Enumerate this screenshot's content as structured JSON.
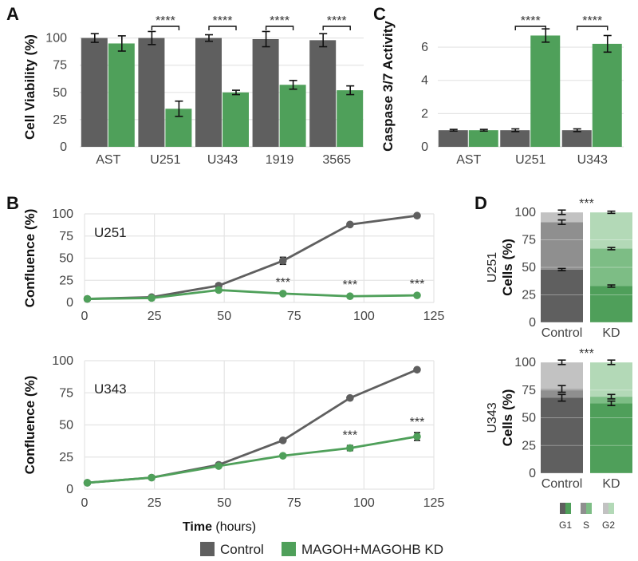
{
  "panel_labels": {
    "a": "A",
    "b": "B",
    "c": "C",
    "d": "D"
  },
  "colors": {
    "control": "#5f5f5f",
    "kd": "#4fa05a",
    "control_g1": "#5f5f5f",
    "control_s": "#8f8f8f",
    "control_g2": "#c2c2c2",
    "kd_g1": "#4f9f5a",
    "kd_s": "#7dbd85",
    "kd_g2": "#b3d9b7",
    "grid": "#e4e4e4"
  },
  "legend": {
    "control": "Control",
    "kd": "MAGOH+MAGOHB KD"
  },
  "chart_data": [
    {
      "id": "A",
      "type": "bar",
      "title": "",
      "ylabel": "Cell Viability (%)",
      "ylim": [
        0,
        110
      ],
      "yticks": [
        0,
        25,
        50,
        75,
        100
      ],
      "categories": [
        "AST",
        "U251",
        "U343",
        "1919",
        "3565"
      ],
      "series": [
        {
          "name": "Control",
          "values": [
            100,
            100,
            100,
            99,
            98
          ],
          "errors": [
            4,
            6,
            3,
            7,
            6
          ]
        },
        {
          "name": "MAGOH+MAGOHB KD",
          "values": [
            95,
            35,
            50,
            57,
            52
          ],
          "errors": [
            7,
            7,
            2,
            4,
            4
          ]
        }
      ],
      "significance": [
        {
          "category": "U251",
          "label": "****"
        },
        {
          "category": "U343",
          "label": "****"
        },
        {
          "category": "1919",
          "label": "****"
        },
        {
          "category": "3565",
          "label": "****"
        }
      ]
    },
    {
      "id": "C",
      "type": "bar",
      "ylabel": "Caspase 3/7 Activity",
      "ylim": [
        0,
        7.3
      ],
      "yticks": [
        0,
        2,
        4,
        6
      ],
      "categories": [
        "AST",
        "U251",
        "U343"
      ],
      "series": [
        {
          "name": "Control",
          "values": [
            1.0,
            1.0,
            1.0
          ],
          "errors": [
            0.05,
            0.08,
            0.08
          ]
        },
        {
          "name": "MAGOH+MAGOHB KD",
          "values": [
            1.0,
            6.7,
            6.2
          ],
          "errors": [
            0.05,
            0.4,
            0.5
          ]
        }
      ],
      "significance": [
        {
          "category": "U251",
          "label": "****"
        },
        {
          "category": "U343",
          "label": "****"
        }
      ]
    },
    {
      "id": "B1",
      "type": "line",
      "label": "U251",
      "ylabel": "Confluence (%)",
      "xlim": [
        0,
        125
      ],
      "ylim": [
        0,
        100
      ],
      "xticks": [
        0,
        25,
        50,
        75,
        100,
        125
      ],
      "yticks": [
        0,
        25,
        50,
        75,
        100
      ],
      "series": [
        {
          "name": "Control",
          "x": [
            1,
            24,
            48,
            71,
            95,
            119
          ],
          "y": [
            4,
            6,
            19,
            47,
            88,
            98
          ],
          "errors": [
            0,
            0,
            2,
            4,
            1,
            0
          ]
        },
        {
          "name": "MAGOH+MAGOHB KD",
          "x": [
            1,
            24,
            48,
            71,
            95,
            119
          ],
          "y": [
            4,
            5,
            14,
            10,
            7,
            8
          ],
          "errors": [
            0,
            0,
            1,
            1,
            1,
            1
          ]
        }
      ],
      "annotations": [
        {
          "x": 71,
          "label": "***"
        },
        {
          "x": 95,
          "label": "***"
        },
        {
          "x": 119,
          "label": "***"
        }
      ]
    },
    {
      "id": "B2",
      "type": "line",
      "label": "U343",
      "ylabel": "Confluence (%)",
      "xlabel": "Time",
      "xlabel_unit": "(hours)",
      "xlim": [
        0,
        125
      ],
      "ylim": [
        0,
        100
      ],
      "xticks": [
        0,
        25,
        50,
        75,
        100,
        125
      ],
      "yticks": [
        0,
        25,
        50,
        75,
        100
      ],
      "series": [
        {
          "name": "Control",
          "x": [
            1,
            24,
            48,
            71,
            95,
            119
          ],
          "y": [
            5,
            9,
            19,
            38,
            71,
            93
          ],
          "errors": [
            0,
            0,
            0,
            0,
            0,
            0
          ]
        },
        {
          "name": "MAGOH+MAGOHB KD",
          "x": [
            1,
            24,
            48,
            71,
            95,
            119
          ],
          "y": [
            5,
            9,
            18,
            26,
            32,
            41
          ],
          "errors": [
            0,
            0,
            0,
            0,
            2,
            3
          ]
        }
      ],
      "annotations": [
        {
          "x": 95,
          "label": "***"
        },
        {
          "x": 119,
          "label": "***"
        }
      ]
    },
    {
      "id": "D1",
      "type": "stacked_bar",
      "label": "U251",
      "ylabel": "Cells (%)",
      "ylim": [
        0,
        100
      ],
      "yticks": [
        0,
        25,
        50,
        75,
        100
      ],
      "categories": [
        "Control",
        "KD"
      ],
      "phases": [
        "G1",
        "S",
        "G2"
      ],
      "values": [
        [
          48,
          43,
          9
        ],
        [
          33,
          34,
          33
        ]
      ],
      "errors": [
        [
          1,
          2,
          2
        ],
        [
          1,
          1,
          1
        ]
      ],
      "significance": "***"
    },
    {
      "id": "D2",
      "type": "stacked_bar",
      "label": "U343",
      "ylabel": "Cells (%)",
      "ylim": [
        0,
        100
      ],
      "yticks": [
        0,
        25,
        50,
        75,
        100
      ],
      "categories": [
        "Control",
        "KD"
      ],
      "phases": [
        "G1",
        "S",
        "G2"
      ],
      "values": [
        [
          68,
          8,
          24
        ],
        [
          63,
          6,
          31
        ]
      ],
      "errors": [
        [
          3,
          3,
          2
        ],
        [
          2,
          2,
          2
        ]
      ],
      "significance": "***"
    }
  ],
  "phase_legend": [
    "G1",
    "S",
    "G2"
  ]
}
